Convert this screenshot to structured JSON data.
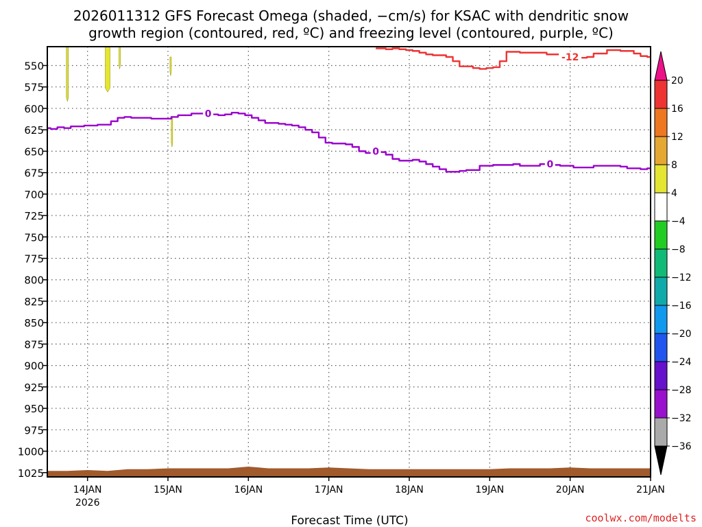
{
  "chart_data": {
    "type": "line",
    "title_line1": "2026011312 GFS Forecast Omega (shaded, −cm/s) for KSAC with dendritic snow",
    "title_line2": "growth region (contoured, red, ºC) and freezing level (contoured, purple, ºC)",
    "xlabel": "Forecast Time (UTC)",
    "credit": "coolwx.com/modelts",
    "x_ticks": [
      {
        "label": "14JAN",
        "sub": "2026",
        "hour": 12
      },
      {
        "label": "15JAN",
        "sub": "",
        "hour": 36
      },
      {
        "label": "16JAN",
        "sub": "",
        "hour": 60
      },
      {
        "label": "17JAN",
        "sub": "",
        "hour": 84
      },
      {
        "label": "18JAN",
        "sub": "",
        "hour": 108
      },
      {
        "label": "19JAN",
        "sub": "",
        "hour": 132
      },
      {
        "label": "20JAN",
        "sub": "",
        "hour": 156
      },
      {
        "label": "21JAN",
        "sub": "",
        "hour": 180
      }
    ],
    "xlim_hours": [
      0,
      180
    ],
    "y_ticks": [
      550,
      575,
      600,
      625,
      650,
      675,
      700,
      725,
      750,
      775,
      800,
      825,
      850,
      875,
      900,
      925,
      950,
      975,
      1000,
      1025
    ],
    "ylim_hpa": [
      528,
      1030
    ],
    "series": [
      {
        "name": "freezing level (0 ºC)",
        "color": "#9900cc",
        "contour_label": "0",
        "label_hours": [
          48,
          98,
          150
        ],
        "hours": [
          0,
          2,
          4,
          6,
          8,
          10,
          12,
          14,
          16,
          18,
          20,
          22,
          24,
          26,
          28,
          30,
          32,
          34,
          36,
          38,
          40,
          42,
          44,
          46,
          48,
          50,
          52,
          54,
          56,
          58,
          60,
          62,
          64,
          66,
          68,
          70,
          72,
          74,
          76,
          78,
          80,
          82,
          84,
          86,
          88,
          90,
          92,
          94,
          96,
          98,
          100,
          102,
          104,
          106,
          108,
          110,
          112,
          114,
          116,
          118,
          120,
          122,
          124,
          126,
          128,
          130,
          132,
          134,
          136,
          138,
          140,
          142,
          144,
          146,
          148,
          150,
          152,
          154,
          156,
          158,
          160,
          162,
          164,
          166,
          168,
          170,
          172,
          174,
          176,
          178,
          180
        ],
        "pressure": [
          623,
          624,
          622,
          623,
          621,
          621,
          620,
          620,
          619,
          619,
          615,
          611,
          610,
          611,
          611,
          611,
          612,
          612,
          612,
          610,
          608,
          608,
          606,
          606,
          606,
          607,
          608,
          607,
          605,
          606,
          608,
          611,
          614,
          617,
          617,
          618,
          619,
          620,
          622,
          625,
          628,
          634,
          640,
          641,
          641,
          642,
          645,
          650,
          652,
          650,
          651,
          654,
          659,
          661,
          661,
          660,
          662,
          665,
          668,
          671,
          674,
          674,
          673,
          672,
          672,
          667,
          667,
          666,
          666,
          666,
          665,
          667,
          667,
          667,
          665,
          665,
          666,
          667,
          667,
          669,
          669,
          669,
          667,
          667,
          667,
          667,
          668,
          670,
          670,
          671,
          670
        ]
      },
      {
        "name": "dendritic growth region (-12 ºC)",
        "color": "#ee3333",
        "contour_label": "-12",
        "label_hours": [
          156
        ],
        "hours": [
          98,
          100,
          102,
          104,
          106,
          108,
          110,
          112,
          114,
          116,
          118,
          120,
          122,
          124,
          126,
          128,
          130,
          132,
          134,
          136,
          138,
          140,
          142,
          144,
          146,
          148,
          150,
          152,
          154,
          156,
          158,
          160,
          162,
          164,
          166,
          168,
          170,
          172,
          174,
          176,
          178,
          180
        ],
        "pressure": [
          530,
          530,
          531,
          530,
          531,
          532,
          533,
          535,
          537,
          538,
          538,
          540,
          545,
          551,
          551,
          553,
          554,
          553,
          552,
          545,
          534,
          534,
          535,
          535,
          535,
          535,
          537,
          537,
          537,
          540,
          540,
          541,
          540,
          536,
          536,
          532,
          532,
          533,
          533,
          536,
          539,
          540
        ]
      }
    ],
    "omega_shading": [
      {
        "hour": 6.0,
        "top": 528,
        "bottom": 592,
        "color": "#dddd44"
      },
      {
        "hour": 18.0,
        "top": 528,
        "bottom": 581,
        "color": "#e5e533"
      },
      {
        "hour": 21.6,
        "top": 528,
        "bottom": 554,
        "color": "#e5e533"
      },
      {
        "hour": 37.2,
        "top": 610,
        "bottom": 645,
        "color": "#e5e533"
      },
      {
        "hour": 36.8,
        "top": 540,
        "bottom": 562,
        "color": "#e5e533"
      }
    ],
    "terrain": {
      "color": "#a05a2c",
      "hours": [
        0,
        6,
        12,
        18,
        24,
        30,
        36,
        42,
        48,
        54,
        60,
        66,
        72,
        78,
        84,
        90,
        96,
        102,
        108,
        114,
        120,
        126,
        132,
        138,
        144,
        150,
        156,
        162,
        168,
        174,
        180
      ],
      "pressure": [
        1023,
        1023,
        1022,
        1023,
        1021,
        1021,
        1020,
        1020,
        1020,
        1020,
        1018,
        1020,
        1020,
        1020,
        1019,
        1020,
        1021,
        1021,
        1021,
        1021,
        1021,
        1021,
        1021,
        1020,
        1020,
        1020,
        1019,
        1020,
        1020,
        1020,
        1020
      ]
    },
    "colorbar": {
      "labels": [
        "20",
        "16",
        "12",
        "8",
        "4",
        "−4",
        "−8",
        "−12",
        "−16",
        "−20",
        "−24",
        "−28",
        "−32",
        "−36"
      ],
      "top_arrow_color": "#ee1188",
      "bottom_arrow_color": "#000000",
      "bins": [
        "#ee3333",
        "#ee7722",
        "#e5a833",
        "#e5e533",
        "#ffffff",
        "#22cc22",
        "#11bb77",
        "#11aaaa",
        "#1199ee",
        "#2255ee",
        "#6611cc",
        "#9911cc",
        "#aaaaaa"
      ]
    }
  }
}
